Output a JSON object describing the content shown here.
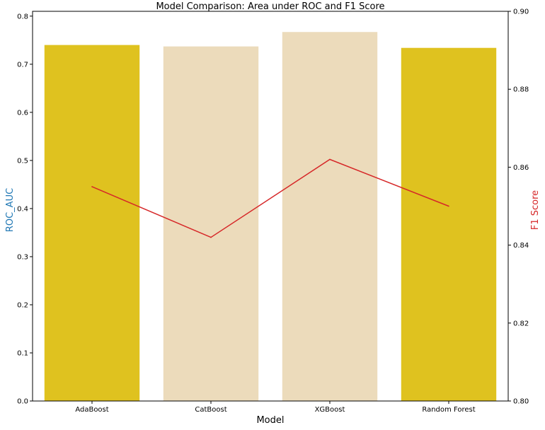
{
  "chart_data": {
    "type": "bar",
    "title": "Model Comparison: Area under ROC and F1 Score",
    "xlabel": "Model",
    "ylabel": "ROC_AUC",
    "ylabel_right": "F1 Score",
    "categories": [
      "AdaBoost",
      "CatBoost",
      "XGBoost",
      "Random Forest"
    ],
    "series": [
      {
        "name": "ROC_AUC",
        "kind": "bar",
        "axis": "left",
        "values": [
          0.74,
          0.737,
          0.767,
          0.734
        ],
        "colors": [
          "#dfc21f",
          "#ecdbbb",
          "#ecdbbb",
          "#dfc21f"
        ]
      },
      {
        "name": "F1 Score",
        "kind": "line",
        "axis": "right",
        "values": [
          0.855,
          0.842,
          0.862,
          0.85
        ],
        "color": "#d62728"
      }
    ],
    "ylim": [
      0,
      0.81
    ],
    "ylim_right": [
      0.8,
      0.9
    ],
    "yticks": [
      "0.0",
      "0.1",
      "0.2",
      "0.3",
      "0.4",
      "0.5",
      "0.6",
      "0.7",
      "0.8"
    ],
    "yticks_right": [
      "0.80",
      "0.82",
      "0.84",
      "0.86",
      "0.88",
      "0.90"
    ],
    "ylabel_color": "#1f77b4",
    "ylabel_right_color": "#d62728",
    "grid": false,
    "legend": "none"
  }
}
